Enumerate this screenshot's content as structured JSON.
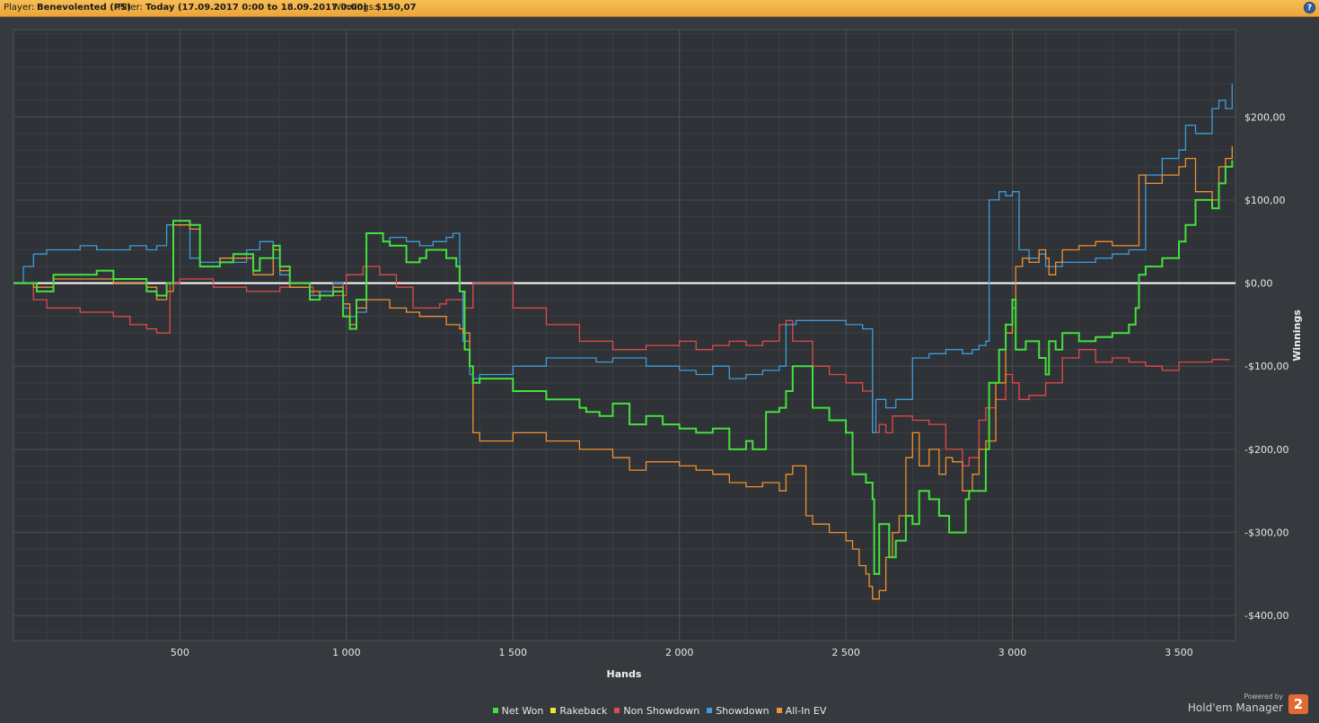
{
  "header": {
    "player_label": "Player:",
    "player_value": "Benevolented (PS)",
    "filter_label": "Filter:",
    "filter_value": "Today (17.09.2017 0:00 to 18.09.2017 0:00)",
    "winnings_label": "Winnings:",
    "winnings_value": "$150,07",
    "help_label": "?"
  },
  "branding": {
    "powered_by": "Powered by",
    "product": "Hold'em Manager",
    "logo_text": "2"
  },
  "chart_data": {
    "type": "line",
    "xlabel": "Hands",
    "ylabel": "Winnings",
    "xlim": [
      0,
      3670
    ],
    "ylim": [
      -430,
      305
    ],
    "x_ticks": [
      {
        "value": 500,
        "label": "500"
      },
      {
        "value": 1000,
        "label": "1 000"
      },
      {
        "value": 1500,
        "label": "1 500"
      },
      {
        "value": 2000,
        "label": "2 000"
      },
      {
        "value": 2500,
        "label": "2 500"
      },
      {
        "value": 3000,
        "label": "3 000"
      },
      {
        "value": 3500,
        "label": "3 500"
      }
    ],
    "y_ticks": [
      {
        "value": 200,
        "label": "$200,00"
      },
      {
        "value": 100,
        "label": "$100,00"
      },
      {
        "value": 0,
        "label": "$0,00"
      },
      {
        "value": -100,
        "label": "-$100,00"
      },
      {
        "value": -200,
        "label": "-$200,00"
      },
      {
        "value": -300,
        "label": "-$300,00"
      },
      {
        "value": -400,
        "label": "-$400,00"
      }
    ],
    "grid": true,
    "zero_line": true,
    "legend_position": "bottom-center",
    "series": [
      {
        "name": "Net Won",
        "color": "#45e03e",
        "x": [
          0,
          60,
          70,
          120,
          250,
          300,
          400,
          430,
          460,
          480,
          530,
          560,
          620,
          660,
          720,
          740,
          780,
          800,
          830,
          890,
          920,
          960,
          990,
          1010,
          1030,
          1060,
          1110,
          1130,
          1180,
          1220,
          1240,
          1300,
          1330,
          1340,
          1355,
          1370,
          1380,
          1400,
          1500,
          1600,
          1700,
          1720,
          1760,
          1800,
          1850,
          1900,
          1950,
          2000,
          2050,
          2100,
          2150,
          2200,
          2220,
          2260,
          2300,
          2320,
          2340,
          2400,
          2450,
          2500,
          2520,
          2560,
          2580,
          2585,
          2600,
          2630,
          2650,
          2680,
          2700,
          2720,
          2750,
          2780,
          2810,
          2860,
          2870,
          2900,
          2920,
          2930,
          2960,
          2980,
          3000,
          3010,
          3040,
          3080,
          3100,
          3110,
          3130,
          3150,
          3200,
          3250,
          3300,
          3350,
          3370,
          3380,
          3400,
          3450,
          3500,
          3520,
          3550,
          3600,
          3620,
          3640,
          3660
        ],
        "y": [
          0,
          0,
          -10,
          10,
          15,
          5,
          -10,
          -15,
          0,
          75,
          70,
          20,
          25,
          35,
          15,
          30,
          45,
          20,
          0,
          -20,
          -15,
          -10,
          -40,
          -55,
          -20,
          60,
          50,
          45,
          25,
          30,
          40,
          30,
          20,
          -10,
          -80,
          -100,
          -120,
          -115,
          -130,
          -140,
          -150,
          -155,
          -160,
          -145,
          -170,
          -160,
          -170,
          -175,
          -180,
          -175,
          -200,
          -190,
          -200,
          -155,
          -150,
          -130,
          -100,
          -150,
          -165,
          -180,
          -230,
          -240,
          -260,
          -350,
          -290,
          -330,
          -310,
          -280,
          -290,
          -250,
          -260,
          -280,
          -300,
          -260,
          -250,
          -250,
          -200,
          -120,
          -80,
          -50,
          -20,
          -80,
          -70,
          -90,
          -110,
          -70,
          -80,
          -60,
          -70,
          -65,
          -60,
          -50,
          -30,
          10,
          20,
          30,
          50,
          70,
          100,
          90,
          120,
          140,
          148
        ]
      },
      {
        "name": "Rakeback",
        "color": "#f2e12f",
        "x": [],
        "y": []
      },
      {
        "name": "Non Showdown",
        "color": "#e34a4a",
        "x": [
          0,
          60,
          100,
          200,
          300,
          350,
          400,
          430,
          470,
          500,
          600,
          700,
          800,
          900,
          1000,
          1050,
          1100,
          1150,
          1200,
          1280,
          1300,
          1350,
          1380,
          1500,
          1600,
          1700,
          1800,
          1900,
          2000,
          2050,
          2100,
          2150,
          2200,
          2250,
          2300,
          2320,
          2340,
          2400,
          2450,
          2500,
          2550,
          2580,
          2600,
          2620,
          2640,
          2700,
          2750,
          2800,
          2850,
          2870,
          2900,
          2920,
          2950,
          2980,
          3000,
          3020,
          3050,
          3100,
          3150,
          3200,
          3250,
          3300,
          3350,
          3400,
          3450,
          3500,
          3550,
          3600,
          3650
        ],
        "y": [
          0,
          -20,
          -30,
          -35,
          -40,
          -50,
          -55,
          -60,
          0,
          5,
          -5,
          -10,
          -5,
          -15,
          10,
          20,
          10,
          -5,
          -30,
          -25,
          -20,
          -30,
          0,
          -30,
          -50,
          -70,
          -80,
          -75,
          -70,
          -80,
          -75,
          -70,
          -75,
          -70,
          -50,
          -45,
          -70,
          -100,
          -110,
          -120,
          -130,
          -180,
          -170,
          -180,
          -160,
          -165,
          -170,
          -200,
          -220,
          -210,
          -165,
          -150,
          -140,
          -110,
          -120,
          -140,
          -135,
          -120,
          -90,
          -80,
          -95,
          -90,
          -95,
          -100,
          -105,
          -95,
          -95,
          -92,
          -93
        ]
      },
      {
        "name": "Showdown",
        "color": "#3f9ddb",
        "x": [
          0,
          20,
          30,
          60,
          100,
          200,
          250,
          300,
          350,
          400,
          430,
          460,
          480,
          530,
          560,
          620,
          660,
          700,
          740,
          780,
          800,
          830,
          890,
          920,
          960,
          990,
          1010,
          1030,
          1060,
          1110,
          1130,
          1180,
          1220,
          1260,
          1300,
          1320,
          1340,
          1350,
          1370,
          1380,
          1400,
          1500,
          1600,
          1700,
          1750,
          1800,
          1900,
          2000,
          2050,
          2100,
          2150,
          2200,
          2250,
          2300,
          2320,
          2350,
          2400,
          2450,
          2500,
          2550,
          2580,
          2590,
          2620,
          2650,
          2700,
          2750,
          2800,
          2850,
          2880,
          2900,
          2920,
          2930,
          2960,
          2980,
          3000,
          3020,
          3050,
          3080,
          3100,
          3150,
          3200,
          3250,
          3300,
          3350,
          3380,
          3400,
          3450,
          3500,
          3520,
          3550,
          3600,
          3620,
          3640,
          3660
        ],
        "y": [
          0,
          0,
          20,
          35,
          40,
          45,
          40,
          40,
          45,
          40,
          45,
          70,
          70,
          30,
          25,
          30,
          25,
          40,
          50,
          30,
          10,
          -5,
          -15,
          -10,
          0,
          -30,
          -40,
          -35,
          60,
          50,
          55,
          50,
          45,
          50,
          55,
          60,
          -10,
          -70,
          -110,
          -115,
          -110,
          -100,
          -90,
          -90,
          -95,
          -90,
          -100,
          -105,
          -110,
          -100,
          -115,
          -110,
          -105,
          -100,
          -50,
          -45,
          -45,
          -45,
          -50,
          -55,
          -180,
          -140,
          -150,
          -140,
          -90,
          -85,
          -80,
          -85,
          -80,
          -75,
          -70,
          100,
          110,
          105,
          110,
          40,
          30,
          35,
          20,
          25,
          25,
          30,
          35,
          40,
          40,
          130,
          150,
          160,
          190,
          180,
          210,
          220,
          210,
          240
        ]
      },
      {
        "name": "All-In EV",
        "color": "#f0922f",
        "x": [
          0,
          60,
          120,
          250,
          300,
          400,
          430,
          460,
          480,
          530,
          560,
          620,
          660,
          720,
          780,
          800,
          830,
          890,
          920,
          960,
          990,
          1010,
          1030,
          1060,
          1110,
          1130,
          1180,
          1220,
          1260,
          1300,
          1340,
          1350,
          1370,
          1380,
          1400,
          1500,
          1600,
          1700,
          1800,
          1850,
          1900,
          1950,
          2000,
          2050,
          2100,
          2150,
          2200,
          2250,
          2300,
          2320,
          2340,
          2380,
          2400,
          2450,
          2500,
          2520,
          2540,
          2560,
          2570,
          2580,
          2600,
          2620,
          2640,
          2660,
          2680,
          2700,
          2720,
          2750,
          2780,
          2800,
          2820,
          2850,
          2880,
          2900,
          2920,
          2930,
          2950,
          2980,
          3000,
          3010,
          3030,
          3050,
          3080,
          3100,
          3110,
          3130,
          3150,
          3200,
          3250,
          3300,
          3350,
          3380,
          3400,
          3450,
          3500,
          3520,
          3550,
          3600,
          3620,
          3640,
          3660
        ],
        "y": [
          0,
          -5,
          5,
          5,
          0,
          -5,
          -20,
          -10,
          70,
          65,
          20,
          30,
          30,
          10,
          40,
          15,
          -5,
          -10,
          -15,
          -5,
          -25,
          -50,
          -30,
          -20,
          -20,
          -30,
          -35,
          -40,
          -40,
          -50,
          -55,
          -60,
          -100,
          -180,
          -190,
          -180,
          -190,
          -200,
          -210,
          -225,
          -215,
          -215,
          -220,
          -225,
          -230,
          -240,
          -245,
          -240,
          -250,
          -230,
          -220,
          -280,
          -290,
          -300,
          -310,
          -320,
          -340,
          -350,
          -365,
          -380,
          -370,
          -330,
          -300,
          -280,
          -210,
          -180,
          -220,
          -200,
          -230,
          -210,
          -215,
          -250,
          -230,
          -200,
          -190,
          -190,
          -120,
          -60,
          -30,
          20,
          30,
          25,
          40,
          30,
          10,
          25,
          40,
          45,
          50,
          45,
          45,
          130,
          120,
          130,
          140,
          150,
          110,
          100,
          140,
          150,
          165
        ]
      }
    ]
  }
}
